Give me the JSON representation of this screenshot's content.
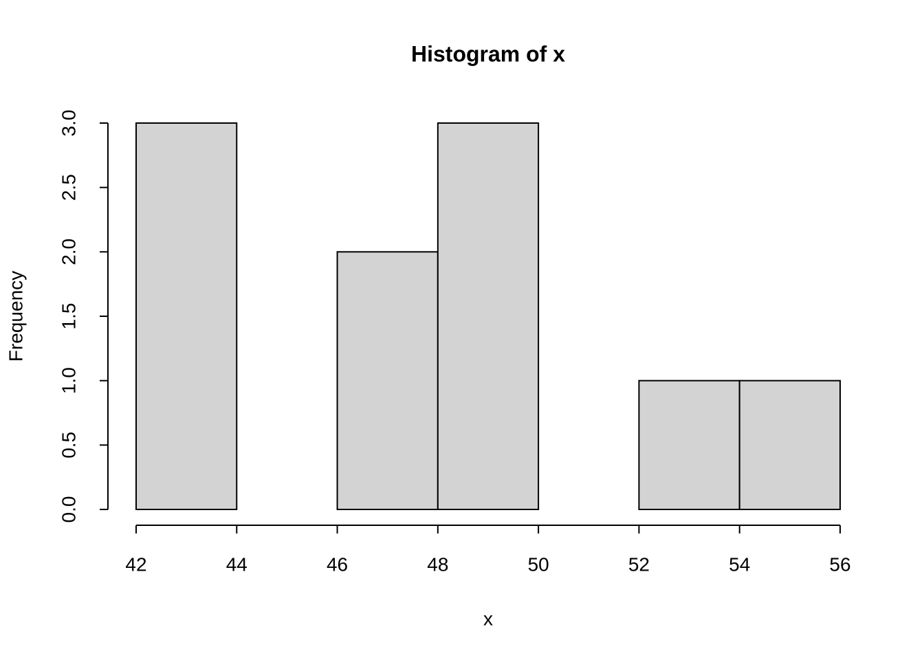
{
  "chart_data": {
    "type": "histogram",
    "title": "Histogram of x",
    "x_label": "x",
    "y_label": "Frequency",
    "bins": [
      42,
      44,
      46,
      48,
      50,
      52,
      54,
      56
    ],
    "values": [
      3,
      0,
      2,
      3,
      0,
      1,
      1
    ],
    "color": "#d3d3d3",
    "xlim": [
      42,
      56
    ],
    "xticks": [
      42,
      44,
      46,
      48,
      50,
      52,
      54,
      56
    ],
    "ylim": [
      0,
      3
    ],
    "yticks": [
      {
        "value": 0,
        "label": "0.0"
      },
      0.5,
      {
        "value": 1,
        "label": "1.0"
      },
      1.5,
      {
        "value": 2,
        "label": "2.0"
      },
      2.5,
      {
        "value": 3,
        "label": "3.0"
      }
    ]
  }
}
